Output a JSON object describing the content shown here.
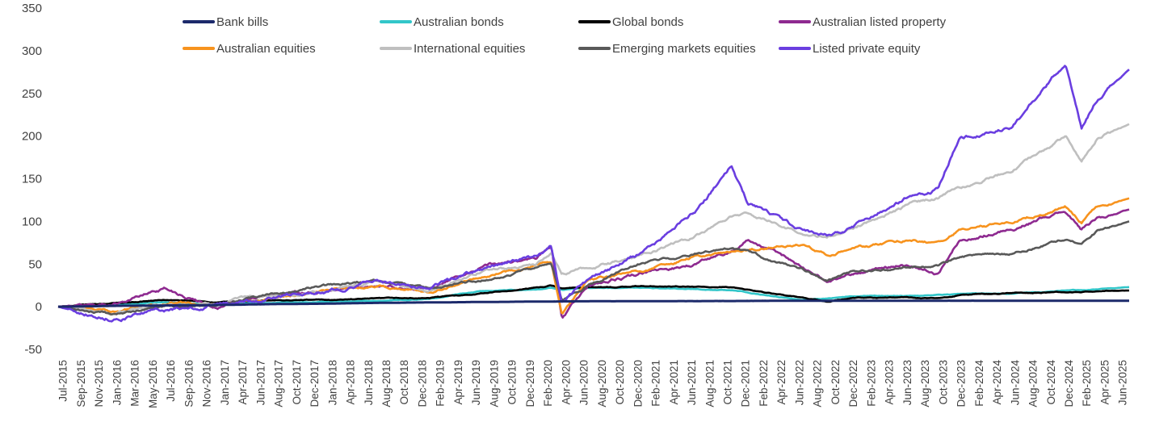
{
  "chart_data": {
    "type": "line",
    "title": "",
    "xlabel": "",
    "ylabel": "",
    "ylim": [
      -50,
      350
    ],
    "yticks": [
      -50,
      0,
      50,
      100,
      150,
      200,
      250,
      300,
      350
    ],
    "categories": [
      "Jul-2015",
      "Sep-2015",
      "Nov-2015",
      "Jan-2016",
      "Mar-2016",
      "May-2016",
      "Jul-2016",
      "Sep-2016",
      "Nov-2016",
      "Jan-2017",
      "Apr-2017",
      "Jun-2017",
      "Aug-2017",
      "Oct-2017",
      "Dec-2017",
      "Jan-2018",
      "Apr-2018",
      "Jun-2018",
      "Aug-2018",
      "Oct-2018",
      "Dec-2018",
      "Feb-2019",
      "Apr-2019",
      "Jun-2019",
      "Aug-2019",
      "Oct-2019",
      "Dec-2019",
      "Feb-2020",
      "Apr-2020",
      "Jun-2020",
      "Aug-2020",
      "Oct-2020",
      "Dec-2020",
      "Feb-2021",
      "Apr-2021",
      "Jun-2021",
      "Aug-2021",
      "Oct-2021",
      "Dec-2021",
      "Feb-2022",
      "Apr-2022",
      "Jun-2022",
      "Aug-2022",
      "Oct-2022",
      "Dec-2022",
      "Feb-2023",
      "Apr-2023",
      "Jun-2023",
      "Aug-2023",
      "Oct-2023",
      "Dec-2023",
      "Feb-2024",
      "Apr-2024",
      "Jun-2024",
      "Aug-2024",
      "Oct-2024",
      "Dec-2024",
      "Feb-2025",
      "Apr-2025",
      "Jun-2025"
    ],
    "legend_position": "top",
    "grid": false,
    "x": [
      2015.5,
      2016.0,
      2016.5,
      2017.0,
      2017.5,
      2018.0,
      2018.5,
      2019.0,
      2019.5,
      2020.0,
      2020.15,
      2020.25,
      2020.5,
      2021.0,
      2021.5,
      2021.85,
      2022.0,
      2022.5,
      2022.75,
      2023.0,
      2023.5,
      2023.8,
      2024.0,
      2024.5,
      2025.0,
      2025.15,
      2025.3,
      2025.6
    ],
    "series": [
      {
        "name": "Bank bills",
        "color": "#1c2a6b",
        "values": [
          0,
          1,
          1.5,
          2,
          3,
          3.5,
          4.5,
          5,
          5.5,
          6,
          6,
          6.2,
          6.4,
          6.5,
          6.6,
          6.7,
          6.8,
          7,
          7,
          7,
          7,
          7,
          7,
          7,
          7,
          7,
          7,
          7
        ]
      },
      {
        "name": "Australian bonds",
        "color": "#32c6c9",
        "values": [
          0,
          2,
          5,
          3,
          5,
          6,
          7,
          9,
          18,
          20,
          22,
          20,
          22,
          22,
          21,
          19,
          17,
          8,
          10,
          12,
          13,
          14,
          15,
          16,
          19,
          20,
          21,
          23
        ]
      },
      {
        "name": "Global bonds",
        "color": "#000000",
        "values": [
          0,
          4,
          8,
          5,
          7,
          8,
          9,
          10,
          16,
          22,
          25,
          22,
          22,
          24,
          23,
          22,
          20,
          10,
          6,
          10,
          11,
          9,
          14,
          16,
          17,
          17,
          18,
          19
        ]
      },
      {
        "name": "Australian listed property",
        "color": "#8e2a90",
        "values": [
          0,
          3,
          22,
          0,
          12,
          18,
          26,
          20,
          48,
          55,
          70,
          -15,
          25,
          38,
          50,
          66,
          78,
          48,
          30,
          40,
          50,
          38,
          78,
          92,
          112,
          90,
          104,
          114
        ]
      },
      {
        "name": "Australian equities",
        "color": "#f7931e",
        "values": [
          0,
          -6,
          5,
          3,
          12,
          18,
          25,
          18,
          38,
          48,
          50,
          -12,
          30,
          42,
          58,
          64,
          66,
          72,
          62,
          68,
          78,
          74,
          90,
          98,
          118,
          100,
          116,
          127
        ]
      },
      {
        "name": "International equities",
        "color": "#bfbfbf",
        "values": [
          0,
          -8,
          2,
          4,
          12,
          18,
          28,
          20,
          42,
          50,
          60,
          38,
          45,
          60,
          82,
          106,
          108,
          88,
          82,
          92,
          118,
          128,
          140,
          160,
          200,
          168,
          198,
          214
        ]
      },
      {
        "name": "Emerging markets equities",
        "color": "#595959",
        "values": [
          0,
          -10,
          0,
          4,
          14,
          24,
          30,
          20,
          32,
          45,
          50,
          5,
          25,
          52,
          62,
          66,
          62,
          44,
          30,
          40,
          46,
          48,
          58,
          62,
          80,
          72,
          88,
          100
        ]
      },
      {
        "name": "Listed private equity",
        "color": "#6a3ee0",
        "values": [
          0,
          -12,
          -4,
          2,
          12,
          20,
          30,
          22,
          44,
          58,
          72,
          5,
          30,
          62,
          110,
          166,
          124,
          90,
          82,
          95,
          128,
          140,
          200,
          210,
          288,
          210,
          244,
          278
        ]
      }
    ]
  }
}
